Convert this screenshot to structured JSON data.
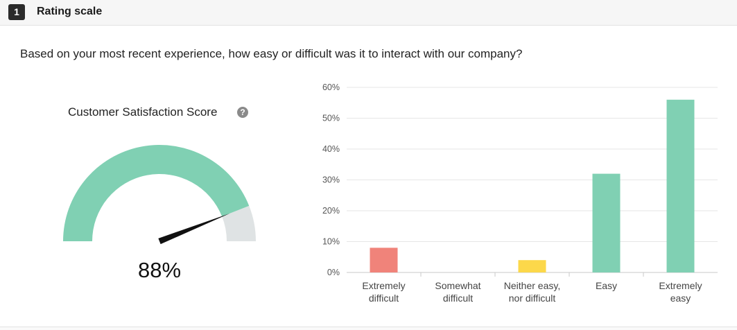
{
  "question": {
    "number": "1",
    "type_label": "Rating scale",
    "text": "Based on your most recent experience, how easy or difficult was it to interact with our company?"
  },
  "csat": {
    "label": "Customer Satisfaction Score",
    "help_icon": "question-circle-icon",
    "value": 88,
    "value_text": "88%",
    "colors": {
      "fill": "#80d0b3",
      "rest": "#dfe3e4",
      "needle": "#111111"
    }
  },
  "chart_data": {
    "type": "bar",
    "categories": [
      [
        "Extremely",
        "difficult"
      ],
      [
        "Somewhat",
        "difficult"
      ],
      [
        "Neither easy,",
        "nor difficult"
      ],
      [
        "Easy"
      ],
      [
        "Extremely",
        "easy"
      ]
    ],
    "values": [
      8,
      0,
      4,
      32,
      56
    ],
    "colors": [
      "#f0837a",
      "#f0837a",
      "#fcd84a",
      "#80d0b3",
      "#80d0b3"
    ],
    "ylim": [
      0,
      60
    ],
    "yticks": [
      0,
      10,
      20,
      30,
      40,
      50,
      60
    ],
    "ytick_suffix": "%",
    "grid": true,
    "title": "",
    "xlabel": "",
    "ylabel": ""
  }
}
